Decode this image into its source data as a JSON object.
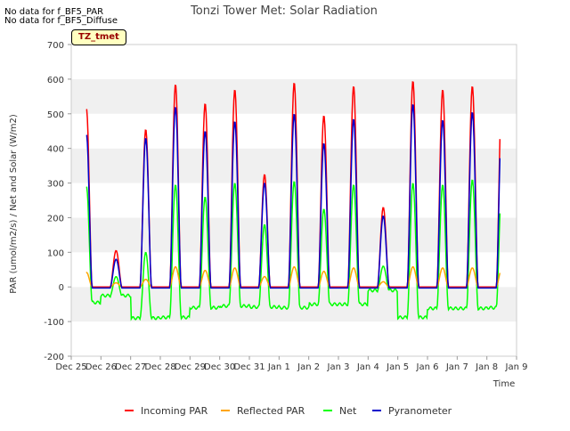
{
  "notes": [
    "No data for f_BF5_PAR",
    "No data for f_BF5_Diffuse"
  ],
  "badge": "TZ_tmet",
  "chart_data": {
    "type": "line",
    "title": "Tonzi Tower Met: Solar Radiation",
    "xlabel": "Time",
    "ylabel": "PAR (umol/m2/s) / Net and Solar (W/m2)",
    "ylim": [
      -200,
      700
    ],
    "xlim": [
      0,
      15
    ],
    "yticks": [
      -200,
      -100,
      0,
      100,
      200,
      300,
      400,
      500,
      600,
      700
    ],
    "xticks": [
      {
        "x": 0,
        "label": "Dec 25"
      },
      {
        "x": 1,
        "label": "Dec 26"
      },
      {
        "x": 2,
        "label": "Dec 27"
      },
      {
        "x": 3,
        "label": "Dec 28"
      },
      {
        "x": 4,
        "label": "Dec 29"
      },
      {
        "x": 5,
        "label": "Dec 30"
      },
      {
        "x": 6,
        "label": "Dec 31"
      },
      {
        "x": 7,
        "label": "Jan 1"
      },
      {
        "x": 8,
        "label": "Jan 2"
      },
      {
        "x": 9,
        "label": "Jan 3"
      },
      {
        "x": 10,
        "label": "Jan 4"
      },
      {
        "x": 11,
        "label": "Jan 5"
      },
      {
        "x": 12,
        "label": "Jan 6"
      },
      {
        "x": 13,
        "label": "Jan 7"
      },
      {
        "x": 14,
        "label": "Jan 8"
      },
      {
        "x": 15,
        "label": "Jan 9"
      }
    ],
    "grid": "horizontal bands",
    "legend": "bottom",
    "series": [
      {
        "name": "Incoming PAR",
        "color": "#ff0000",
        "peaks": [
          515,
          105,
          455,
          585,
          530,
          570,
          325,
          590,
          495,
          580,
          230,
          595,
          570,
          580
        ]
      },
      {
        "name": "Reflected PAR",
        "color": "#ffa500",
        "peaks": [
          42,
          12,
          22,
          58,
          48,
          55,
          30,
          58,
          45,
          55,
          15,
          58,
          55,
          55
        ]
      },
      {
        "name": "Net",
        "color": "#00ff00",
        "peaks": [
          290,
          30,
          100,
          295,
          260,
          300,
          180,
          305,
          225,
          295,
          60,
          300,
          295,
          310
        ]
      },
      {
        "name": "Pyranometer",
        "color": "#0000cc",
        "peaks": [
          440,
          80,
          430,
          520,
          450,
          478,
          300,
          500,
          415,
          485,
          205,
          528,
          482,
          505
        ]
      }
    ],
    "net_night": [
      -45,
      -25,
      -90,
      -88,
      -60,
      -55,
      -58,
      -60,
      -50,
      -50,
      -10,
      -88,
      -62,
      -62,
      -60
    ]
  }
}
